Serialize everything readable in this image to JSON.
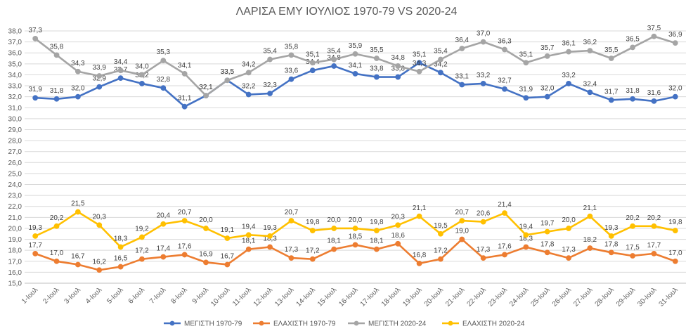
{
  "chart_data": {
    "type": "line",
    "title": "ΛΑΡΙΣΑ ΕΜΥ ΙΟΥΛΙΟΣ 1970-79 VS 2020-24",
    "xlabel": "",
    "ylabel": "",
    "ylim": [
      15.0,
      38.0
    ],
    "ytick_step": 1.0,
    "grid": true,
    "legend_position": "bottom",
    "categories": [
      "1-Ιουλ",
      "2-Ιουλ",
      "3-Ιουλ",
      "4-Ιουλ",
      "5-Ιουλ",
      "6-Ιουλ",
      "7-Ιουλ",
      "8-Ιουλ",
      "9-Ιουλ",
      "10-Ιουλ",
      "11-Ιουλ",
      "12-Ιουλ",
      "13-Ιουλ",
      "14-Ιουλ",
      "15-Ιουλ",
      "16-Ιουλ",
      "17-Ιουλ",
      "18-Ιουλ",
      "19-Ιουλ",
      "20-Ιουλ",
      "21-Ιουλ",
      "22-Ιουλ",
      "23-Ιουλ",
      "24-Ιουλ",
      "25-Ιουλ",
      "26-Ιουλ",
      "27-Ιουλ",
      "28-Ιουλ",
      "29-Ιουλ",
      "30-Ιουλ",
      "31-Ιουλ"
    ],
    "series": [
      {
        "name": "ΜΕΓΙΣΤΗ 1970-79",
        "color": "#4472C4",
        "values": [
          31.9,
          31.8,
          32.0,
          32.9,
          33.7,
          33.2,
          32.8,
          31.1,
          32.1,
          33.5,
          32.2,
          32.3,
          33.6,
          34.4,
          34.8,
          34.1,
          33.8,
          33.8,
          35.1,
          34.2,
          33.1,
          33.2,
          32.7,
          31.9,
          32.0,
          33.2,
          32.4,
          31.7,
          31.8,
          31.6,
          32.0
        ]
      },
      {
        "name": "ΕΛΑΧΙΣΤΗ 1970-79",
        "color": "#ED7D31",
        "values": [
          17.7,
          17.0,
          16.7,
          16.2,
          16.5,
          17.2,
          17.4,
          17.6,
          16.9,
          16.7,
          18.1,
          18.3,
          17.3,
          17.2,
          18.1,
          18.5,
          18.1,
          18.6,
          16.8,
          17.2,
          19.0,
          17.3,
          17.6,
          18.3,
          17.8,
          17.3,
          18.2,
          17.8,
          17.5,
          17.7,
          17.0
        ]
      },
      {
        "name": "ΜΕΓΙΣΤΗ 2020-24",
        "color": "#A5A5A5",
        "values": [
          37.3,
          35.8,
          34.3,
          33.9,
          34.4,
          34.0,
          35.3,
          34.1,
          32.1,
          33.5,
          34.2,
          35.4,
          35.8,
          35.1,
          35.4,
          35.9,
          35.5,
          34.8,
          34.3,
          35.4,
          36.4,
          37.0,
          36.3,
          35.1,
          35.7,
          36.1,
          36.2,
          35.5,
          36.5,
          37.5,
          36.9
        ]
      },
      {
        "name": "ΕΛΑΧΙΣΤΗ 2020-24",
        "color": "#FFC000",
        "values": [
          19.3,
          20.2,
          21.5,
          20.3,
          18.3,
          19.2,
          20.4,
          20.7,
          20.0,
          19.1,
          19.4,
          19.3,
          20.7,
          19.8,
          20.0,
          20.0,
          19.8,
          20.3,
          21.1,
          19.5,
          20.7,
          20.6,
          21.4,
          19.4,
          19.7,
          20.0,
          21.1,
          19.3,
          20.2,
          20.2,
          19.8
        ]
      }
    ]
  }
}
